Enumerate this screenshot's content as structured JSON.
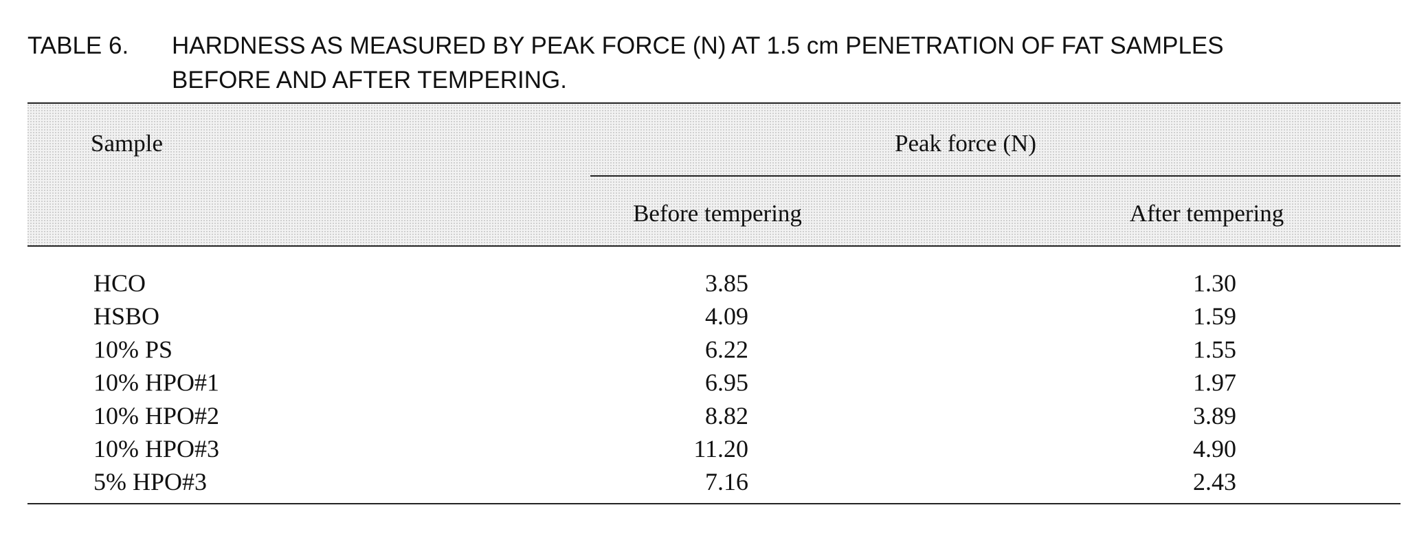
{
  "caption": {
    "label": "TABLE 6.",
    "lines": [
      "HARDNESS AS MEASURED BY PEAK FORCE (N) AT 1.5 cm PENETRATION OF FAT SAMPLES",
      "BEFORE AND AFTER TEMPERING."
    ]
  },
  "table": {
    "header": {
      "sample": "Sample",
      "group": "Peak force (N)",
      "columns": [
        "Before tempering",
        "After tempering"
      ]
    },
    "rows": [
      [
        "HCO",
        "3.85",
        "1.30"
      ],
      [
        "HSBO",
        "4.09",
        "1.59"
      ],
      [
        "10% PS",
        "6.22",
        "1.55"
      ],
      [
        "10% HPO#1",
        "6.95",
        "1.97"
      ],
      [
        "10% HPO#2",
        "8.82",
        "3.89"
      ],
      [
        "10% HPO#3",
        "11.20",
        "4.90"
      ],
      [
        "5% HPO#3",
        "7.16",
        "2.43"
      ]
    ]
  }
}
